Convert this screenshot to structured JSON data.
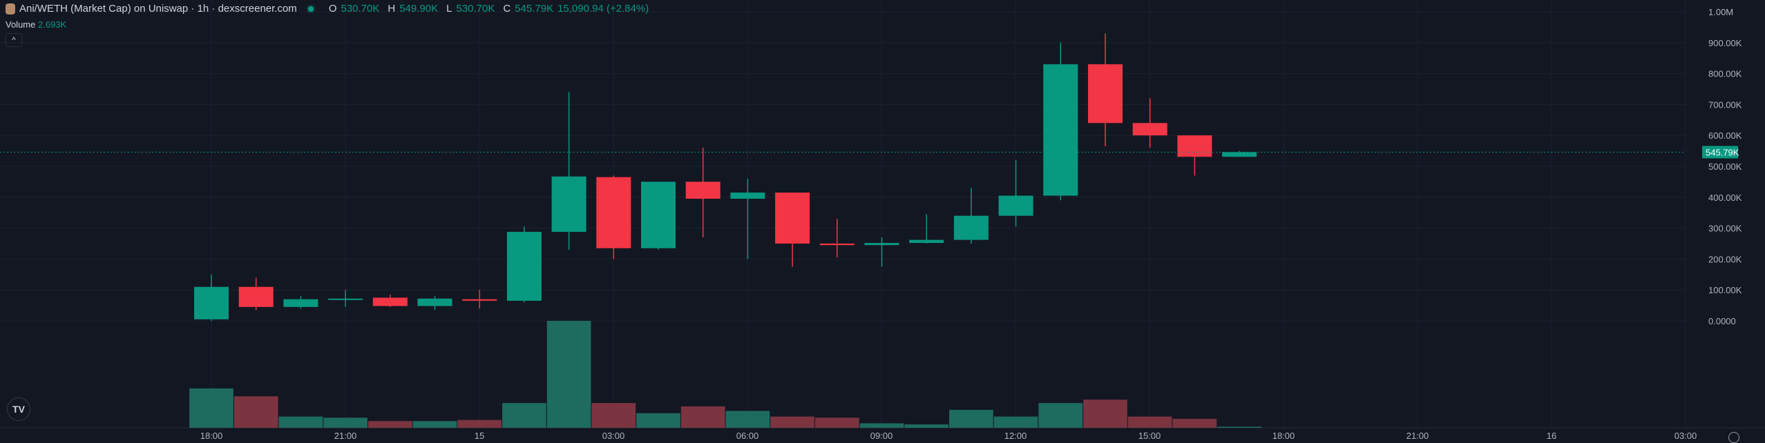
{
  "header": {
    "title": "Ani/WETH (Market Cap) on Uniswap · 1h · dexscreener.com",
    "ohlc": {
      "o_label": "O",
      "o": "530.70K",
      "h_label": "H",
      "h": "549.90K",
      "l_label": "L",
      "l": "530.70K",
      "c_label": "C",
      "c": "545.79K",
      "change": "15,090.94 (+2.84%)"
    },
    "volume_label": "Volume",
    "volume_value": "2.693K",
    "collapse_icon": "chevron-up-icon"
  },
  "colors": {
    "background": "#131722",
    "up": "#089981",
    "down": "#f23645",
    "vol_up": "#1e6b60",
    "vol_down": "#7c3441",
    "grid": "#1e222d",
    "text": "#b2b5be"
  },
  "chart_data": {
    "type": "candlestick",
    "interval": "1h",
    "y_ticks": [
      "1.00M",
      "900.00K",
      "800.00K",
      "700.00K",
      "600.00K",
      "500.00K",
      "400.00K",
      "300.00K",
      "200.00K",
      "100.00K",
      "0.0000"
    ],
    "ylim": [
      0,
      1000000
    ],
    "x_ticks": [
      "18:00",
      "21:00",
      "15",
      "03:00",
      "06:00",
      "09:00",
      "12:00",
      "15:00",
      "18:00",
      "21:00",
      "16",
      "03:00"
    ],
    "last_price_label": "545.79K",
    "last_price": 545790,
    "grid": true,
    "candles": [
      {
        "t": "18:00",
        "o": 5000,
        "h": 150000,
        "l": 0,
        "c": 110000,
        "v": 35
      },
      {
        "t": "19:00",
        "o": 110000,
        "h": 140000,
        "l": 35000,
        "c": 45000,
        "v": 28
      },
      {
        "t": "20:00",
        "o": 45000,
        "h": 80000,
        "l": 40000,
        "c": 70000,
        "v": 10
      },
      {
        "t": "21:00",
        "o": 70000,
        "h": 100000,
        "l": 45000,
        "c": 72000,
        "v": 9
      },
      {
        "t": "22:00",
        "o": 75000,
        "h": 85000,
        "l": 45000,
        "c": 48000,
        "v": 6
      },
      {
        "t": "23:00",
        "o": 48000,
        "h": 80000,
        "l": 35000,
        "c": 72000,
        "v": 6
      },
      {
        "t": "00:00",
        "o": 70000,
        "h": 100000,
        "l": 40000,
        "c": 65000,
        "v": 7
      },
      {
        "t": "01:00",
        "o": 65000,
        "h": 305000,
        "l": 60000,
        "c": 288000,
        "v": 22
      },
      {
        "t": "02:00",
        "o": 288000,
        "h": 740000,
        "l": 230000,
        "c": 467000,
        "v": 95
      },
      {
        "t": "03:00",
        "o": 465000,
        "h": 470000,
        "l": 200000,
        "c": 235000,
        "v": 22
      },
      {
        "t": "04:00",
        "o": 235000,
        "h": 450000,
        "l": 230000,
        "c": 450000,
        "v": 13
      },
      {
        "t": "05:00",
        "o": 450000,
        "h": 560000,
        "l": 270000,
        "c": 395000,
        "v": 19
      },
      {
        "t": "06:00",
        "o": 395000,
        "h": 460000,
        "l": 200000,
        "c": 415000,
        "v": 15
      },
      {
        "t": "07:00",
        "o": 415000,
        "h": 415000,
        "l": 175000,
        "c": 250000,
        "v": 10
      },
      {
        "t": "08:00",
        "o": 250000,
        "h": 330000,
        "l": 205000,
        "c": 245000,
        "v": 9
      },
      {
        "t": "09:00",
        "o": 245000,
        "h": 270000,
        "l": 175000,
        "c": 252000,
        "v": 4
      },
      {
        "t": "10:00",
        "o": 252000,
        "h": 345000,
        "l": 250000,
        "c": 262000,
        "v": 3
      },
      {
        "t": "11:00",
        "o": 262000,
        "h": 430000,
        "l": 250000,
        "c": 340000,
        "v": 16
      },
      {
        "t": "12:00",
        "o": 340000,
        "h": 520000,
        "l": 305000,
        "c": 405000,
        "v": 10
      },
      {
        "t": "13:00",
        "o": 405000,
        "h": 900000,
        "l": 390000,
        "c": 830000,
        "v": 22
      },
      {
        "t": "14:00",
        "o": 830000,
        "h": 930000,
        "l": 565000,
        "c": 640000,
        "v": 25
      },
      {
        "t": "15:00",
        "o": 640000,
        "h": 720000,
        "l": 560000,
        "c": 600000,
        "v": 10
      },
      {
        "t": "16:00",
        "o": 600000,
        "h": 600000,
        "l": 470000,
        "c": 530700,
        "v": 8
      },
      {
        "t": "17:00",
        "o": 530700,
        "h": 549900,
        "l": 530700,
        "c": 545790,
        "v": 1
      }
    ]
  }
}
